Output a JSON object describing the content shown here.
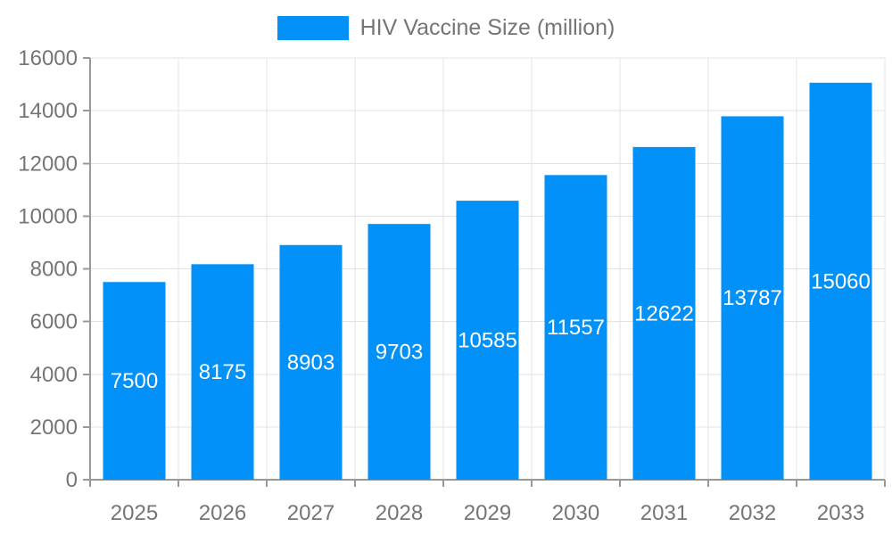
{
  "legend": {
    "label": "HIV Vaccine Size (million)"
  },
  "chart_data": {
    "type": "bar",
    "title": "",
    "legend": "HIV Vaccine Size (million)",
    "legend_position": "top-center",
    "categories": [
      "2025",
      "2026",
      "2027",
      "2028",
      "2029",
      "2030",
      "2031",
      "2032",
      "2033"
    ],
    "values": [
      7500,
      8175,
      8903,
      9703,
      10585,
      11557,
      12622,
      13787,
      15060
    ],
    "xlabel": "",
    "ylabel": "",
    "ylim": [
      0,
      16000
    ],
    "ytick_step": 2000,
    "yticks": [
      0,
      2000,
      4000,
      6000,
      8000,
      10000,
      12000,
      14000,
      16000
    ],
    "grid": true,
    "value_label_position": "inside-center",
    "colors": {
      "bar": "#0291f8",
      "axis": "#999999",
      "grid": "#e3e3e3",
      "tick_label": "#757575",
      "value_label": "#ffffff"
    }
  }
}
